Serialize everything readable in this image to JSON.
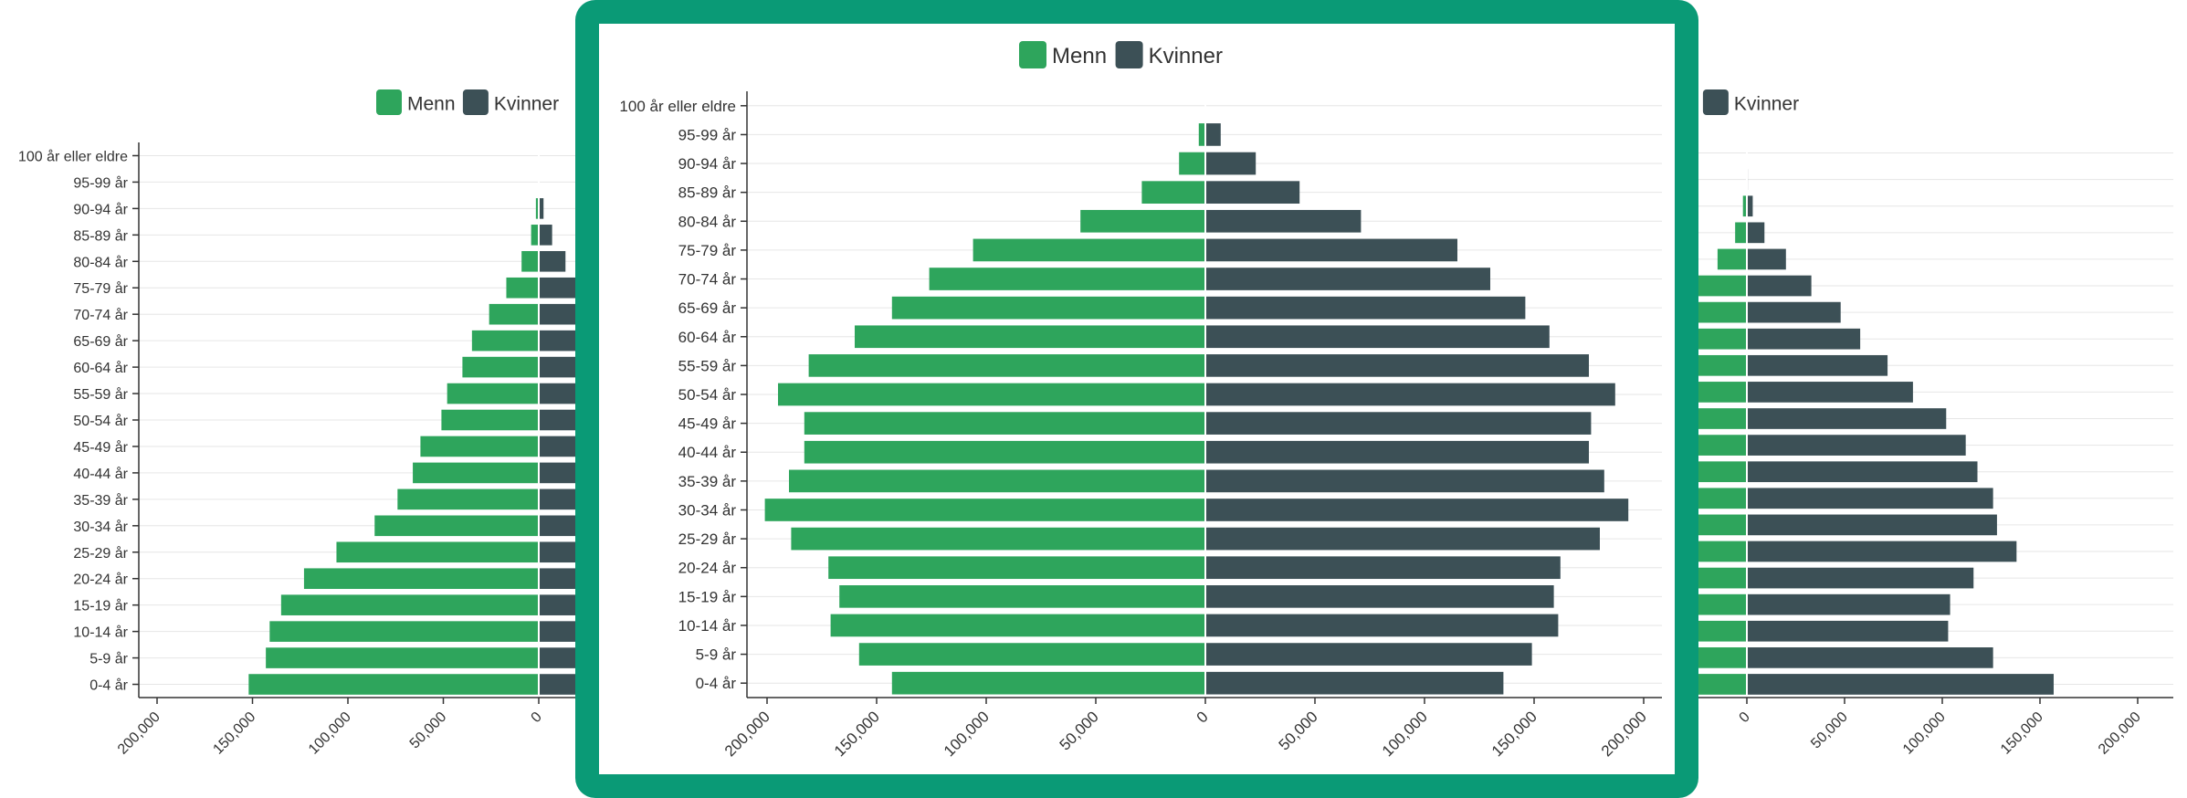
{
  "colors": {
    "men": "#2ea55c",
    "women": "#3c5056",
    "frame": "#0a9a76"
  },
  "legend": {
    "men_label": "Menn",
    "women_label": "Kvinner"
  },
  "chart_data": [
    {
      "type": "bar",
      "orientation": "horizontal-population-pyramid",
      "categories": [
        "100 år eller eldre",
        "95-99 år",
        "90-94 år",
        "85-89 år",
        "80-84 år",
        "75-79 år",
        "70-74 år",
        "65-69 år",
        "60-64 år",
        "55-59 år",
        "50-54 år",
        "45-49 år",
        "40-44 år",
        "35-39 år",
        "30-34 år",
        "25-29 år",
        "20-24 år",
        "15-19 år",
        "10-14 år",
        "5-9 år",
        "0-4 år"
      ],
      "series": [
        {
          "name": "Menn",
          "values": [
            0,
            200,
            1500,
            4000,
            9000,
            17000,
            26000,
            35000,
            40000,
            48000,
            51000,
            62000,
            66000,
            74000,
            86000,
            106000,
            123000,
            135000,
            141000,
            143000,
            152000
          ]
        },
        {
          "name": "Kvinner",
          "values": [
            0,
            400,
            2500,
            7000,
            14000,
            22000,
            30000,
            38000,
            45000,
            52000,
            60000,
            68000,
            74000,
            82000,
            90000,
            100000,
            110000,
            120000,
            125000,
            130000,
            140000
          ]
        }
      ],
      "xlim": [
        -200000,
        200000
      ],
      "x_ticks": [
        "200,000",
        "150,000",
        "100,000",
        "50,000",
        "0"
      ],
      "legend": "top"
    },
    {
      "type": "bar",
      "orientation": "horizontal-population-pyramid",
      "categories": [
        "100 år eller eldre",
        "95-99 år",
        "90-94 år",
        "85-89 år",
        "80-84 år",
        "75-79 år",
        "70-74 år",
        "65-69 år",
        "60-64 år",
        "55-59 år",
        "50-54 år",
        "45-49 år",
        "40-44 år",
        "35-39 år",
        "30-34 år",
        "25-29 år",
        "20-24 år",
        "15-19 år",
        "10-14 år",
        "5-9 år",
        "0-4 år"
      ],
      "series": [
        {
          "name": "Menn",
          "values": [
            300,
            3000,
            12000,
            29000,
            57000,
            106000,
            126000,
            143000,
            160000,
            181000,
            195000,
            183000,
            183000,
            190000,
            201000,
            189000,
            172000,
            167000,
            171000,
            158000,
            143000
          ]
        },
        {
          "name": "Kvinner",
          "values": [
            200,
            7000,
            23000,
            43000,
            71000,
            115000,
            130000,
            146000,
            157000,
            175000,
            187000,
            176000,
            175000,
            182000,
            193000,
            180000,
            162000,
            159000,
            161000,
            149000,
            136000
          ]
        }
      ],
      "xlim": [
        -200000,
        200000
      ],
      "x_ticks": [
        "200,000",
        "150,000",
        "100,000",
        "50,000",
        "0",
        "50,000",
        "100,000",
        "150,000",
        "200,000"
      ],
      "legend": "top",
      "highlighted": true
    },
    {
      "type": "bar",
      "orientation": "horizontal-population-pyramid",
      "categories": [
        "100 år eller eldre",
        "95-99 år",
        "90-94 år",
        "85-89 år",
        "80-84 år",
        "75-79 år",
        "70-74 år",
        "65-69 år",
        "60-64 år",
        "55-59 år",
        "50-54 år",
        "45-49 år",
        "40-44 år",
        "35-39 år",
        "30-34 år",
        "25-29 år",
        "20-24 år",
        "15-19 år",
        "10-14 år",
        "5-9 år",
        "0-4 år"
      ],
      "series": [
        {
          "name": "Menn",
          "values": [
            0,
            300,
            2000,
            6000,
            15000,
            26000,
            32000,
            44000,
            52000,
            60000,
            70000,
            80000,
            90000,
            95000,
            100000,
            110000,
            105000,
            95000,
            95000,
            110000,
            145000
          ]
        },
        {
          "name": "Kvinner",
          "values": [
            0,
            500,
            3000,
            9000,
            20000,
            33000,
            48000,
            58000,
            72000,
            85000,
            102000,
            112000,
            118000,
            126000,
            128000,
            138000,
            116000,
            104000,
            103000,
            126000,
            157000
          ]
        }
      ],
      "xlim": [
        -200000,
        200000
      ],
      "x_ticks": [
        "0",
        "50,000",
        "100,000",
        "150,000",
        "200,000"
      ],
      "legend": "top"
    }
  ]
}
